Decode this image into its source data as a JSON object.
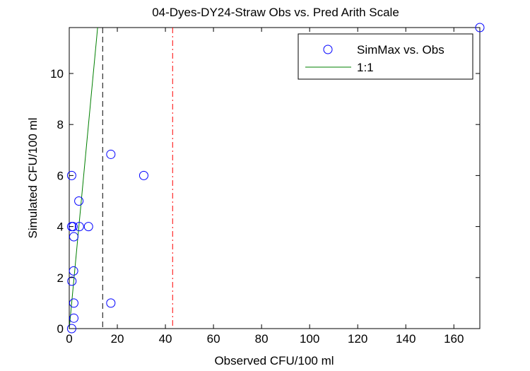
{
  "chart_data": {
    "type": "scatter",
    "title": "04-Dyes-DY24-Straw Obs vs. Pred Arith Scale",
    "xlabel": "Observed CFU/100 ml",
    "ylabel": "Simulated CFU/100 ml",
    "xlim": [
      0,
      170.8
    ],
    "ylim": [
      0,
      11.8
    ],
    "xticks": [
      0,
      20,
      40,
      60,
      80,
      100,
      120,
      140,
      160
    ],
    "yticks": [
      0,
      2,
      4,
      6,
      8,
      10
    ],
    "grid": false,
    "legend_placement": "top-right",
    "series": [
      {
        "name": "SimMax vs. Obs",
        "marker": "circle",
        "color": "#0000ff",
        "points": [
          [
            1,
            6
          ],
          [
            17.3,
            6.83
          ],
          [
            31,
            6
          ],
          [
            4,
            5
          ],
          [
            1,
            4
          ],
          [
            1.6,
            4
          ],
          [
            4.2,
            4
          ],
          [
            8,
            4
          ],
          [
            1.9,
            3.6
          ],
          [
            1.8,
            2.26
          ],
          [
            1.1,
            1.86
          ],
          [
            1.9,
            1.0
          ],
          [
            17.3,
            1.0
          ],
          [
            1.9,
            0.41
          ],
          [
            1,
            0
          ],
          [
            170.8,
            11.8
          ]
        ]
      },
      {
        "name": "1:1",
        "type": "line",
        "color": "#008000",
        "points": [
          [
            0,
            0
          ],
          [
            11.8,
            11.8
          ]
        ]
      }
    ],
    "reference_lines": [
      {
        "x": 13.9,
        "style": "dashed",
        "color": "#000000"
      },
      {
        "x": 43,
        "style": "dash-dot",
        "color": "#ff0000"
      }
    ]
  }
}
